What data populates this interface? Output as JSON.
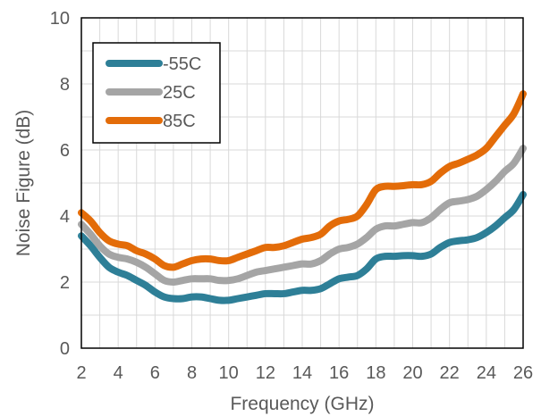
{
  "chart_data": {
    "type": "line",
    "title": "",
    "xlabel": "Frequency (GHz)",
    "ylabel": "Noise Figure (dB)",
    "xlim": [
      2,
      26
    ],
    "ylim": [
      0,
      10
    ],
    "x_ticks": [
      2,
      4,
      6,
      8,
      10,
      12,
      14,
      16,
      18,
      20,
      22,
      24,
      26
    ],
    "y_ticks": [
      0,
      2,
      4,
      6,
      8,
      10
    ],
    "x_tick_labels": [
      "2",
      "4",
      "6",
      "8",
      "10",
      "12",
      "14",
      "16",
      "18",
      "20",
      "22",
      "24",
      "26"
    ],
    "y_tick_labels": [
      "0",
      "2",
      "4",
      "6",
      "8",
      "10"
    ],
    "grid": true,
    "legend_position": "top-left",
    "series": [
      {
        "name": "-55C",
        "color": "#2e7f97",
        "x": [
          2,
          2.5,
          3,
          3.5,
          4,
          4.5,
          5,
          5.5,
          6,
          6.5,
          7,
          7.5,
          8,
          8.5,
          9,
          9.5,
          10,
          10.5,
          11,
          11.5,
          12,
          12.5,
          13,
          13.5,
          14,
          14.5,
          15,
          15.5,
          16,
          16.5,
          17,
          17.5,
          18,
          18.5,
          19,
          19.5,
          20,
          20.5,
          21,
          21.5,
          22,
          22.5,
          23,
          23.5,
          24,
          24.5,
          25,
          25.5,
          26
        ],
        "y": [
          3.4,
          3.1,
          2.75,
          2.45,
          2.3,
          2.2,
          2.05,
          1.9,
          1.7,
          1.55,
          1.5,
          1.5,
          1.55,
          1.55,
          1.5,
          1.45,
          1.45,
          1.5,
          1.55,
          1.6,
          1.65,
          1.65,
          1.65,
          1.7,
          1.75,
          1.75,
          1.8,
          1.95,
          2.1,
          2.15,
          2.2,
          2.4,
          2.7,
          2.78,
          2.78,
          2.8,
          2.8,
          2.78,
          2.85,
          3.05,
          3.2,
          3.25,
          3.28,
          3.35,
          3.5,
          3.7,
          3.95,
          4.2,
          4.65
        ]
      },
      {
        "name": "25C",
        "color": "#a5a5a5",
        "x": [
          2,
          2.5,
          3,
          3.5,
          4,
          4.5,
          5,
          5.5,
          6,
          6.5,
          7,
          7.5,
          8,
          8.5,
          9,
          9.5,
          10,
          10.5,
          11,
          11.5,
          12,
          12.5,
          13,
          13.5,
          14,
          14.5,
          15,
          15.5,
          16,
          16.5,
          17,
          17.5,
          18,
          18.5,
          19,
          19.5,
          20,
          20.5,
          21,
          21.5,
          22,
          22.5,
          23,
          23.5,
          24,
          24.5,
          25,
          25.5,
          26
        ],
        "y": [
          3.75,
          3.45,
          3.1,
          2.85,
          2.75,
          2.7,
          2.6,
          2.45,
          2.25,
          2.05,
          2.0,
          2.05,
          2.1,
          2.1,
          2.1,
          2.05,
          2.05,
          2.1,
          2.2,
          2.3,
          2.35,
          2.4,
          2.45,
          2.5,
          2.55,
          2.55,
          2.65,
          2.85,
          3.0,
          3.05,
          3.15,
          3.35,
          3.6,
          3.7,
          3.7,
          3.75,
          3.8,
          3.8,
          3.95,
          4.2,
          4.4,
          4.45,
          4.5,
          4.6,
          4.8,
          5.05,
          5.35,
          5.6,
          6.05
        ]
      },
      {
        "name": "85C",
        "color": "#e36c09",
        "x": [
          2,
          2.5,
          3,
          3.5,
          4,
          4.5,
          5,
          5.5,
          6,
          6.5,
          7,
          7.5,
          8,
          8.5,
          9,
          9.5,
          10,
          10.5,
          11,
          11.5,
          12,
          12.5,
          13,
          13.5,
          14,
          14.5,
          15,
          15.5,
          16,
          16.5,
          17,
          17.5,
          18,
          18.5,
          19,
          19.5,
          20,
          20.5,
          21,
          21.5,
          22,
          22.5,
          23,
          23.5,
          24,
          24.5,
          25,
          25.5,
          26
        ],
        "y": [
          4.1,
          3.85,
          3.5,
          3.25,
          3.15,
          3.1,
          2.95,
          2.85,
          2.7,
          2.5,
          2.45,
          2.55,
          2.65,
          2.7,
          2.7,
          2.65,
          2.65,
          2.75,
          2.85,
          2.95,
          3.05,
          3.05,
          3.1,
          3.2,
          3.3,
          3.35,
          3.45,
          3.7,
          3.85,
          3.9,
          4.0,
          4.35,
          4.8,
          4.9,
          4.9,
          4.92,
          4.95,
          4.95,
          5.05,
          5.3,
          5.5,
          5.6,
          5.72,
          5.85,
          6.05,
          6.4,
          6.75,
          7.1,
          7.7
        ]
      }
    ]
  }
}
